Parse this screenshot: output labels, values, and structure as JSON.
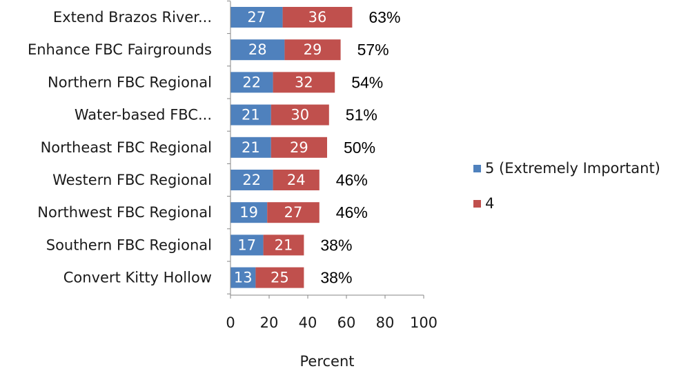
{
  "chart_data": {
    "type": "bar",
    "orientation": "horizontal",
    "stacked": true,
    "categories": [
      "Extend Brazos River...",
      "Enhance FBC Fairgrounds",
      "Northern FBC Regional",
      "Water-based FBC...",
      "Northeast FBC Regional",
      "Western FBC Regional",
      "Northwest FBC Regional",
      "Southern FBC Regional",
      "Convert Kitty Hollow"
    ],
    "series": [
      {
        "name": "5 (Extremely Important)",
        "color": "#4f81bd",
        "values": [
          27,
          28,
          22,
          21,
          21,
          22,
          19,
          17,
          13
        ]
      },
      {
        "name": "4",
        "color": "#c0504d",
        "values": [
          36,
          29,
          32,
          30,
          29,
          24,
          27,
          21,
          25
        ]
      }
    ],
    "totals": [
      "63%",
      "57%",
      "54%",
      "51%",
      "50%",
      "46%",
      "46%",
      "38%",
      "38%"
    ],
    "xlabel": "Percent",
    "ylabel": "",
    "title": "",
    "xlim": [
      0,
      100
    ],
    "xticks": [
      0,
      20,
      40,
      60,
      80,
      100
    ],
    "grid": false,
    "legend_position": "right"
  }
}
